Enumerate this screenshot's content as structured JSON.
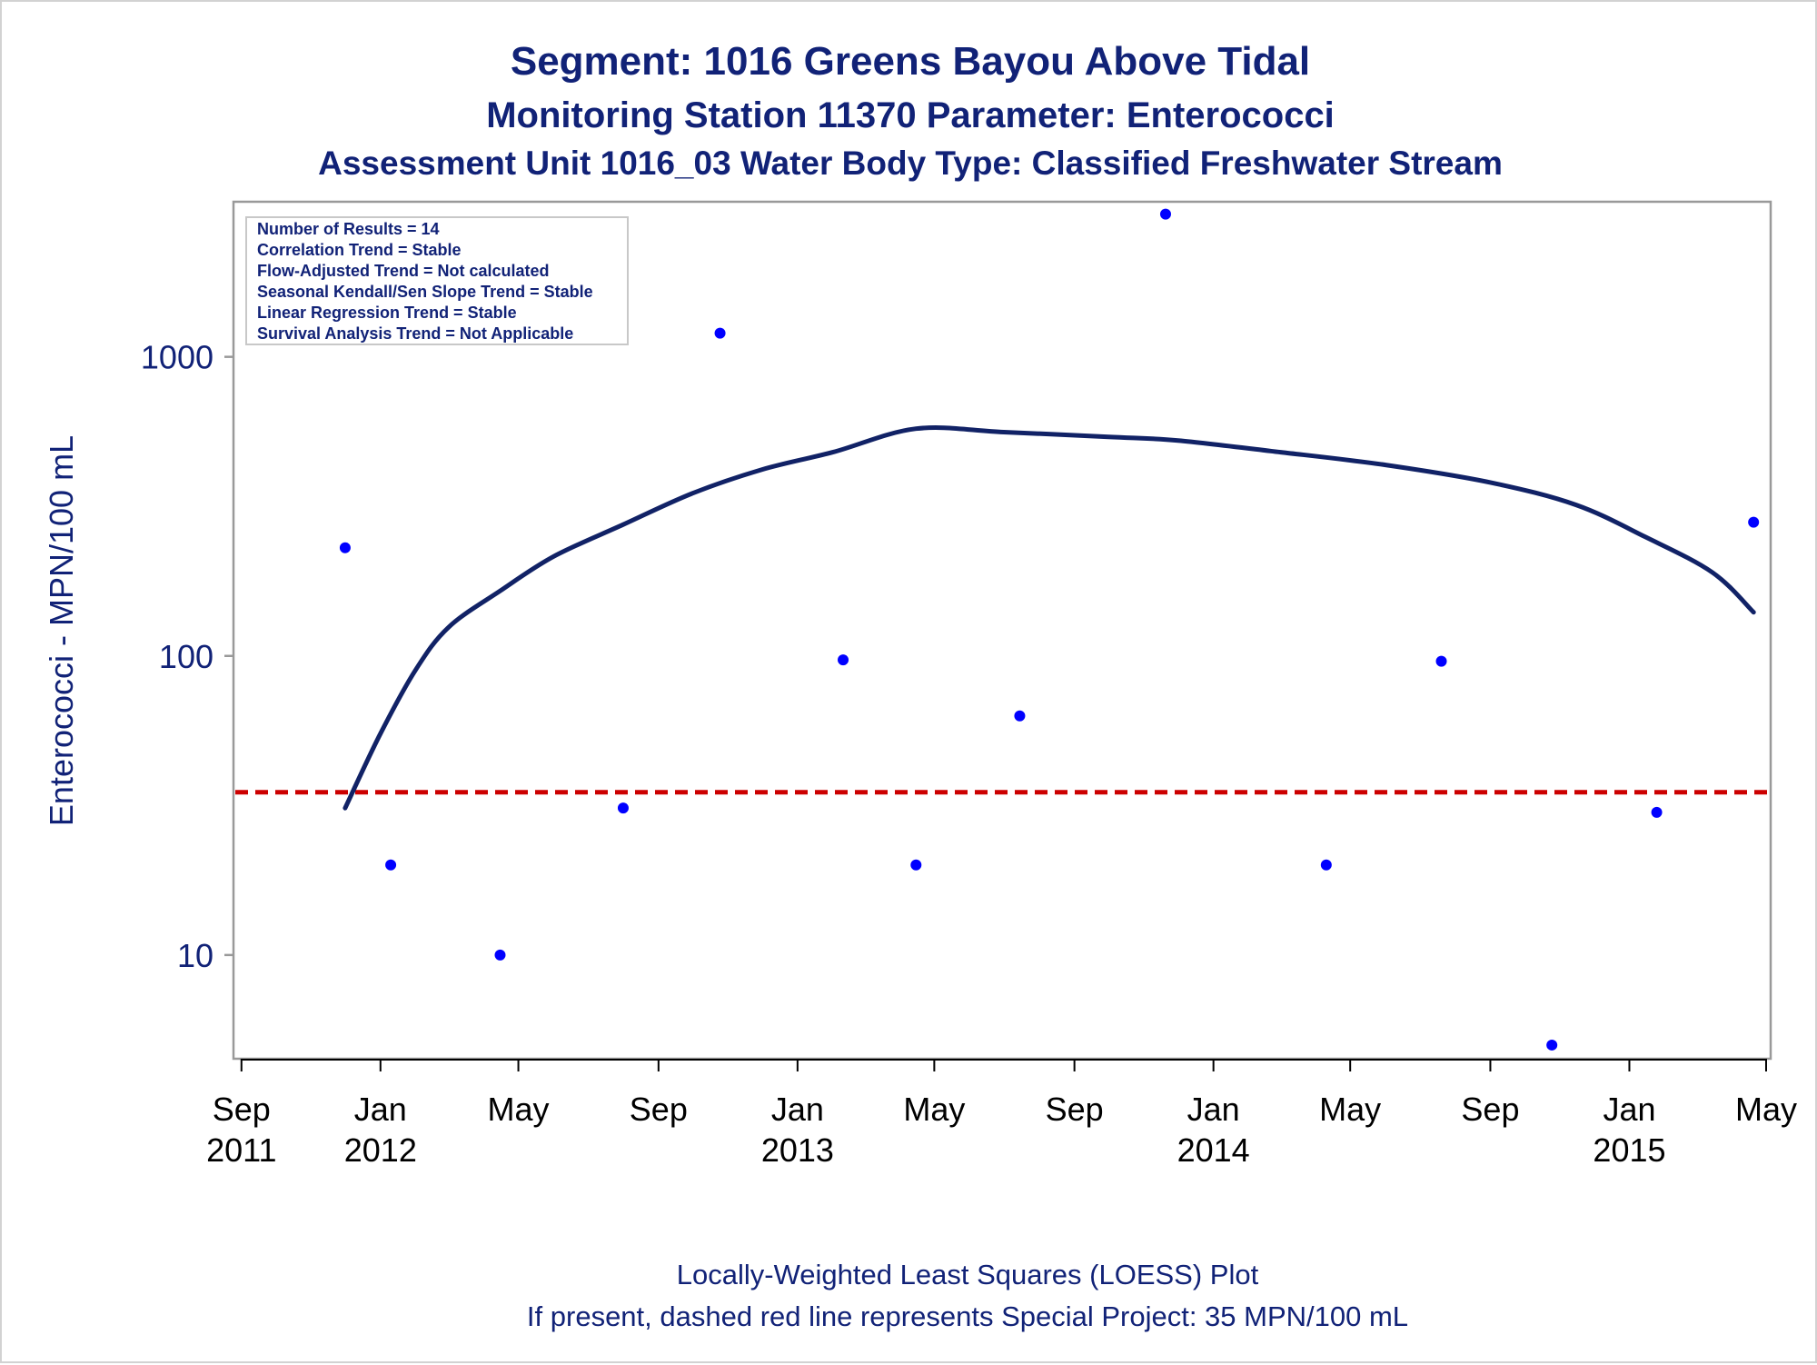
{
  "title": "Segment: 1016  Greens Bayou Above Tidal",
  "subtitle": "Monitoring Station 11370 Parameter: Enterococci",
  "subtitle2": "Assessment Unit 1016_03   Water Body Type: Classified Freshwater Stream",
  "stats": [
    "Number of Results = 14",
    "Correlation Trend = Stable",
    "Flow-Adjusted Trend = Not calculated",
    "Seasonal Kendall/Sen Slope Trend = Stable",
    "Linear Regression Trend = Stable",
    "Survival Analysis Trend = Not Applicable"
  ],
  "footnotes": [
    "Locally-Weighted Least Squares (LOESS) Plot",
    "If present, dashed red line represents Special Project: 35 MPN/100 mL"
  ],
  "colors": {
    "text": "#112277",
    "points": "#0000ff",
    "loess": "#112266",
    "reference": "#cc0000",
    "frame": "#999999"
  },
  "chart_data": {
    "type": "scatter",
    "ylabel": "Enterococci - MPN/100 mL",
    "y_scale": "log",
    "ylim": [
      4.5,
      3300
    ],
    "xlim": [
      "2011-08-25",
      "2015-05-05"
    ],
    "y_ticks": [
      10,
      100,
      1000
    ],
    "x_ticks": [
      {
        "date": "2011-09-01",
        "label": [
          "Sep",
          "2011"
        ]
      },
      {
        "date": "2012-01-01",
        "label": [
          "Jan",
          "2012"
        ]
      },
      {
        "date": "2012-05-01",
        "label": [
          "May",
          ""
        ]
      },
      {
        "date": "2012-09-01",
        "label": [
          "Sep",
          ""
        ]
      },
      {
        "date": "2013-01-01",
        "label": [
          "Jan",
          "2013"
        ]
      },
      {
        "date": "2013-05-01",
        "label": [
          "May",
          ""
        ]
      },
      {
        "date": "2013-09-01",
        "label": [
          "Sep",
          ""
        ]
      },
      {
        "date": "2014-01-01",
        "label": [
          "Jan",
          "2014"
        ]
      },
      {
        "date": "2014-05-01",
        "label": [
          "May",
          ""
        ]
      },
      {
        "date": "2014-09-01",
        "label": [
          "Sep",
          ""
        ]
      },
      {
        "date": "2015-01-01",
        "label": [
          "Jan",
          "2015"
        ]
      },
      {
        "date": "2015-05-01",
        "label": [
          "May",
          ""
        ]
      }
    ],
    "points": [
      {
        "date": "2011-12-01",
        "value": 230
      },
      {
        "date": "2012-01-10",
        "value": 20
      },
      {
        "date": "2012-04-15",
        "value": 10
      },
      {
        "date": "2012-08-01",
        "value": 31
      },
      {
        "date": "2012-10-25",
        "value": 1200
      },
      {
        "date": "2013-02-10",
        "value": 97
      },
      {
        "date": "2013-04-15",
        "value": 20
      },
      {
        "date": "2013-07-15",
        "value": 63
      },
      {
        "date": "2013-11-20",
        "value": 3000
      },
      {
        "date": "2014-04-10",
        "value": 20
      },
      {
        "date": "2014-07-20",
        "value": 96
      },
      {
        "date": "2014-10-25",
        "value": 5
      },
      {
        "date": "2015-01-25",
        "value": 30
      },
      {
        "date": "2015-04-20",
        "value": 280
      }
    ],
    "loess_curve": [
      {
        "date": "2011-12-01",
        "value": 31
      },
      {
        "date": "2012-01-01",
        "value": 55
      },
      {
        "date": "2012-02-01",
        "value": 90
      },
      {
        "date": "2012-03-01",
        "value": 125
      },
      {
        "date": "2012-04-15",
        "value": 165
      },
      {
        "date": "2012-06-01",
        "value": 215
      },
      {
        "date": "2012-08-01",
        "value": 275
      },
      {
        "date": "2012-10-01",
        "value": 350
      },
      {
        "date": "2012-12-01",
        "value": 420
      },
      {
        "date": "2013-02-01",
        "value": 480
      },
      {
        "date": "2013-04-15",
        "value": 575
      },
      {
        "date": "2013-07-01",
        "value": 560
      },
      {
        "date": "2013-10-01",
        "value": 540
      },
      {
        "date": "2013-12-01",
        "value": 525
      },
      {
        "date": "2014-03-01",
        "value": 480
      },
      {
        "date": "2014-06-01",
        "value": 435
      },
      {
        "date": "2014-09-01",
        "value": 380
      },
      {
        "date": "2014-11-15",
        "value": 320
      },
      {
        "date": "2015-01-15",
        "value": 250
      },
      {
        "date": "2015-03-15",
        "value": 190
      },
      {
        "date": "2015-04-20",
        "value": 140
      }
    ],
    "reference_line": {
      "value": 35,
      "style": "dashed",
      "label": "Special Project: 35 MPN/100 mL"
    }
  }
}
